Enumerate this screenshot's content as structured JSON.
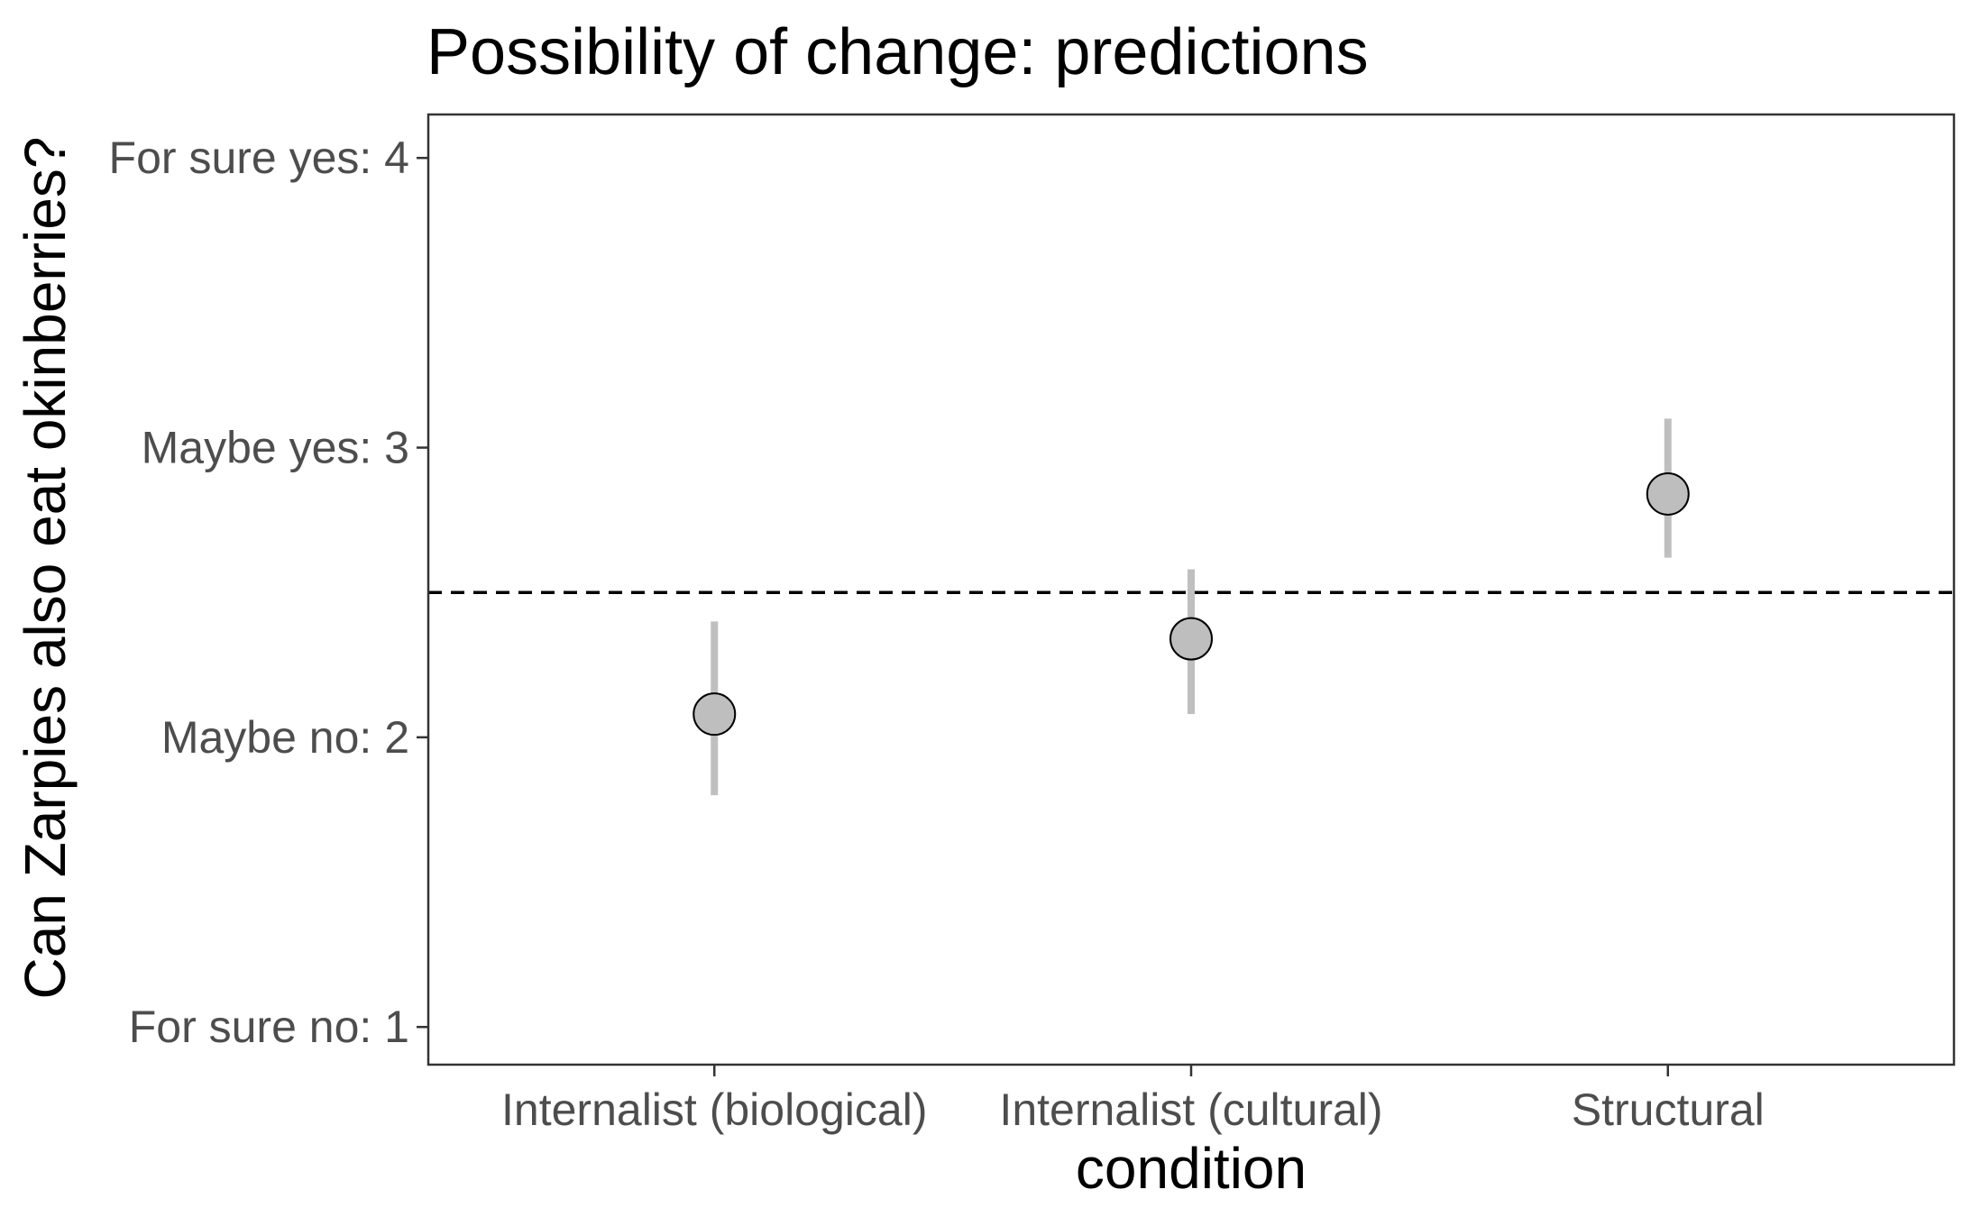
{
  "chart_data": {
    "type": "scatter",
    "title": "Possibility of change: predictions",
    "xlabel": "condition",
    "ylabel": "Can Zarpies also eat okinberries?",
    "ylim": [
      0.87,
      4.15
    ],
    "y_ticks": [
      {
        "value": 1,
        "label": "For sure no: 1"
      },
      {
        "value": 2,
        "label": "Maybe no: 2"
      },
      {
        "value": 3,
        "label": "Maybe yes: 3"
      },
      {
        "value": 4,
        "label": "For sure yes: 4"
      }
    ],
    "categories": [
      "Internalist (biological)",
      "Internalist (cultural)",
      "Structural"
    ],
    "series": [
      {
        "values": [
          2.08,
          2.34,
          2.84
        ],
        "ci_low": [
          1.8,
          2.08,
          2.62
        ],
        "ci_high": [
          2.4,
          2.58,
          3.1
        ]
      }
    ],
    "reference_line": {
      "value": 2.5,
      "style": "dashed"
    },
    "grid": false,
    "colors": {
      "point_fill": "#bebebe",
      "point_stroke": "#000000",
      "error_bar": "#bfbfbf",
      "reference_line": "#000000",
      "frame": "#333333"
    }
  }
}
